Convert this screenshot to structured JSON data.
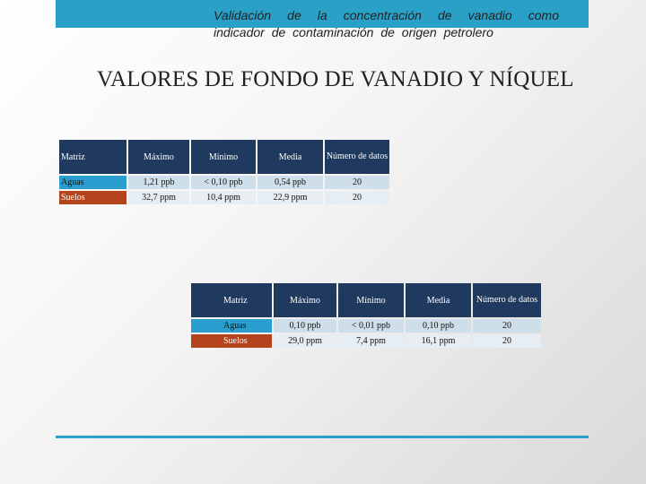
{
  "header": {
    "subtitle": "Validación de la concentración de vanadio como indicador de contaminación de origen petrolero"
  },
  "title": "VALORES DE FONDO DE VANADIO Y NÍQUEL",
  "colors": {
    "header_bar": "#2aa0c7",
    "table_header": "#1f3a5e",
    "aguas_label": "#2a9fcf",
    "suelos_label": "#b4441e"
  },
  "tables": [
    {
      "headers": [
        "Matriz",
        "Máximo",
        "Mínimo",
        "Media",
        "Número de datos"
      ],
      "rows": [
        [
          "Aguas",
          "1,21 ppb",
          "< 0,10 ppb",
          "0,54 ppb",
          "20"
        ],
        [
          "Suelos",
          "32,7 ppm",
          "10,4 ppm",
          "22,9 ppm",
          "20"
        ]
      ]
    },
    {
      "headers": [
        "Matriz",
        "Máximo",
        "Mínimo",
        "Media",
        "Número de datos"
      ],
      "rows": [
        [
          "Aguas",
          "0,10 ppb",
          "< 0,01 ppb",
          "0,10 ppb",
          "20"
        ],
        [
          "Suelos",
          "29,0 ppm",
          "7,4 ppm",
          "16,1 ppm",
          "20"
        ]
      ]
    }
  ]
}
